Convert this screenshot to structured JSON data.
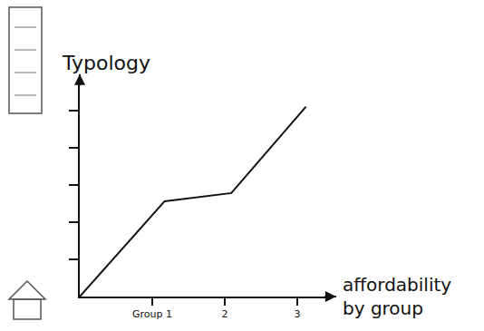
{
  "chart_data": {
    "type": "line",
    "xlabel": "affordability by group",
    "ylabel": "Typology",
    "x": [
      0,
      1.17,
      2.09,
      3.12
    ],
    "values": [
      0,
      2.56,
      2.78,
      5.1
    ],
    "color": "#111111",
    "xlim": [
      0,
      3.4
    ],
    "xticks": [
      {
        "value": 1,
        "label": "Group 1"
      },
      2,
      3
    ],
    "ylim": [
      0,
      5.8
    ],
    "yticks": [
      1,
      2,
      3,
      4,
      5
    ],
    "grid": false,
    "tick_labels": "x"
  }
}
